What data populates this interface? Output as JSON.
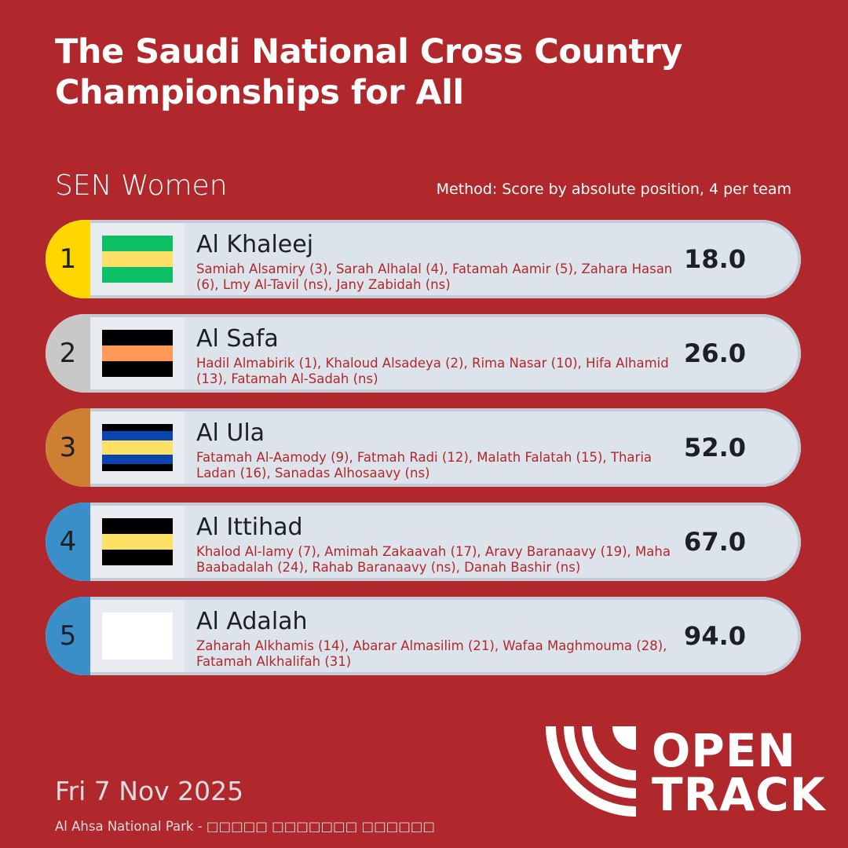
{
  "title": "The Saudi National Cross Country Championships for All",
  "category": "SEN Women",
  "method": "Method: Score by absolute position, 4 per team",
  "rank_colors": [
    "#ffd700",
    "#c8c8c8",
    "#cd8032",
    "#3a8fc8",
    "#3a8fc8"
  ],
  "teams": [
    {
      "rank": "1",
      "name": "Al Khaleej",
      "members": "Samiah Alsamiry (3), Sarah Alhalal (4), Fatamah Aamir (5), Zahara Hasan (6), Lmy Al-Tavil (ns), Jany Zabidah (ns)",
      "score": "18.0",
      "flag": [
        [
          "#0fbf66",
          1
        ],
        [
          "#ffe066",
          1
        ],
        [
          "#0fbf66",
          1
        ]
      ]
    },
    {
      "rank": "2",
      "name": "Al Safa",
      "members": "Hadil Almabirik (1), Khaloud Alsadeya (2), Rima Nasar (10), Hifa Alhamid (13), Fatamah Al-Sadah (ns)",
      "score": "26.0",
      "flag": [
        [
          "#000000",
          1
        ],
        [
          "#ff9955",
          1
        ],
        [
          "#000000",
          1
        ]
      ]
    },
    {
      "rank": "3",
      "name": "Al Ula",
      "members": "Fatamah Al-Aamody (9), Fatmah Radi (12), Malath Falatah (15), Tharia Ladan (16), Sanadas Alhosaavy (ns)",
      "score": "52.0",
      "flag": [
        [
          "#000000",
          1
        ],
        [
          "#0a44b0",
          1.4
        ],
        [
          "#ffe066",
          2
        ],
        [
          "#0a44b0",
          1.4
        ],
        [
          "#000000",
          1
        ]
      ]
    },
    {
      "rank": "4",
      "name": "Al Ittihad",
      "members": "Khalod Al-lamy (7), Amimah Zakaavah (17), Aravy Baranaavy (19), Maha Baabadalah (24), Rahab Baranaavy (ns), Danah Bashir (ns)",
      "score": "67.0",
      "flag": [
        [
          "#000000",
          1
        ],
        [
          "#ffe066",
          1
        ],
        [
          "#000000",
          1
        ]
      ]
    },
    {
      "rank": "5",
      "name": "Al Adalah",
      "members": "Zaharah Alkhamis (14), Abarar Almasilim (21), Wafaa Maghmouma (28), Fatamah Alkhalifah (31)",
      "score": "94.0",
      "flag": [
        [
          "#ffffff",
          1
        ]
      ]
    }
  ],
  "date": "Fri 7 Nov 2025",
  "venue": "Al Ahsa National Park - □□□□□ □□□□□□□ □□□□□□",
  "logo": {
    "line1": "OPEN",
    "line2": "TRACK"
  }
}
